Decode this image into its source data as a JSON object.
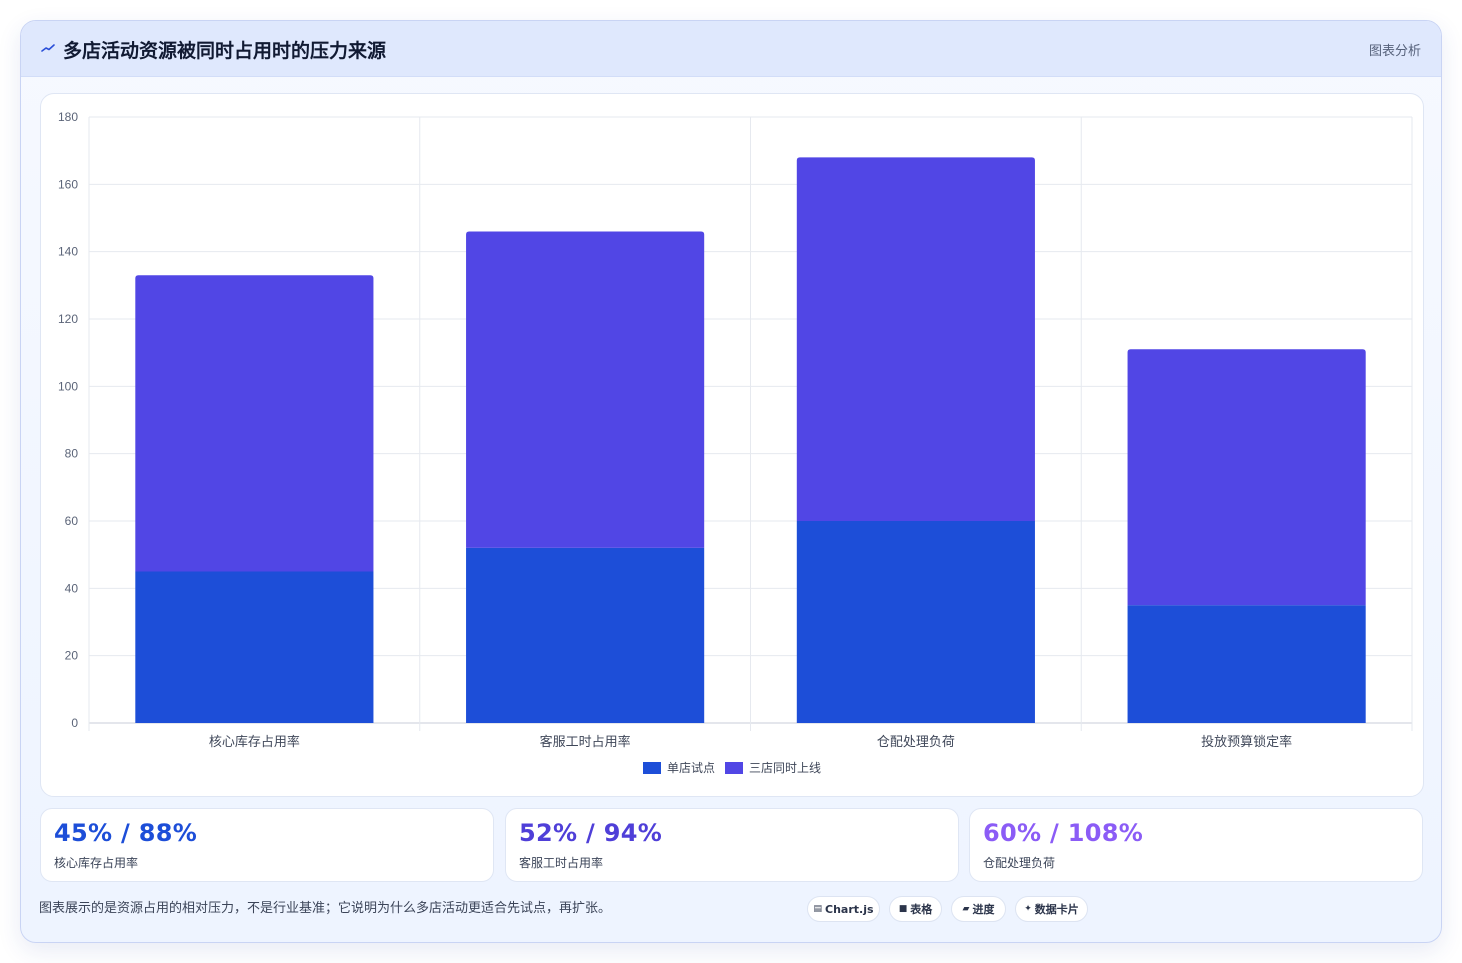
{
  "header": {
    "title": "多店活动资源被同时占用时的压力来源",
    "link_label": "图表分析",
    "icon": "trend-icon"
  },
  "chart_data": {
    "type": "bar",
    "stacked": true,
    "categories": [
      "核心库存占用率",
      "客服工时占用率",
      "仓配处理负荷",
      "投放预算锁定率"
    ],
    "series": [
      {
        "name": "单店试点",
        "values": [
          45,
          52,
          60,
          35
        ],
        "color": "#1d4ed8"
      },
      {
        "name": "三店同时上线",
        "values": [
          88,
          94,
          108,
          76
        ],
        "color": "#5146e5"
      }
    ],
    "ylim": [
      0,
      180
    ],
    "yticks": [
      0,
      20,
      40,
      60,
      80,
      100,
      120,
      140,
      160,
      180
    ],
    "grid": true,
    "legend_position": "bottom"
  },
  "stats": [
    {
      "value": "45% / 88%",
      "label": "核心库存占用率",
      "color": "#1d4ed8"
    },
    {
      "value": "52% / 94%",
      "label": "客服工时占用率",
      "color": "#4f3fd8"
    },
    {
      "value": "60% / 108%",
      "label": "仓配处理负荷",
      "color": "#8b5cf6"
    }
  ],
  "footnote": "图表展示的是资源占用的相对压力，不是行业基准；它说明为什么多店活动更适合先试点，再扩张。",
  "chips": [
    {
      "icon": "chart-icon",
      "glyph": "▤",
      "label": "Chart.js"
    },
    {
      "icon": "table-icon",
      "glyph": "■",
      "label": "表格"
    },
    {
      "icon": "progress-icon",
      "glyph": "▰",
      "label": "进度"
    },
    {
      "icon": "sparkle-icon",
      "glyph": "✦",
      "label": "数据卡片"
    }
  ]
}
